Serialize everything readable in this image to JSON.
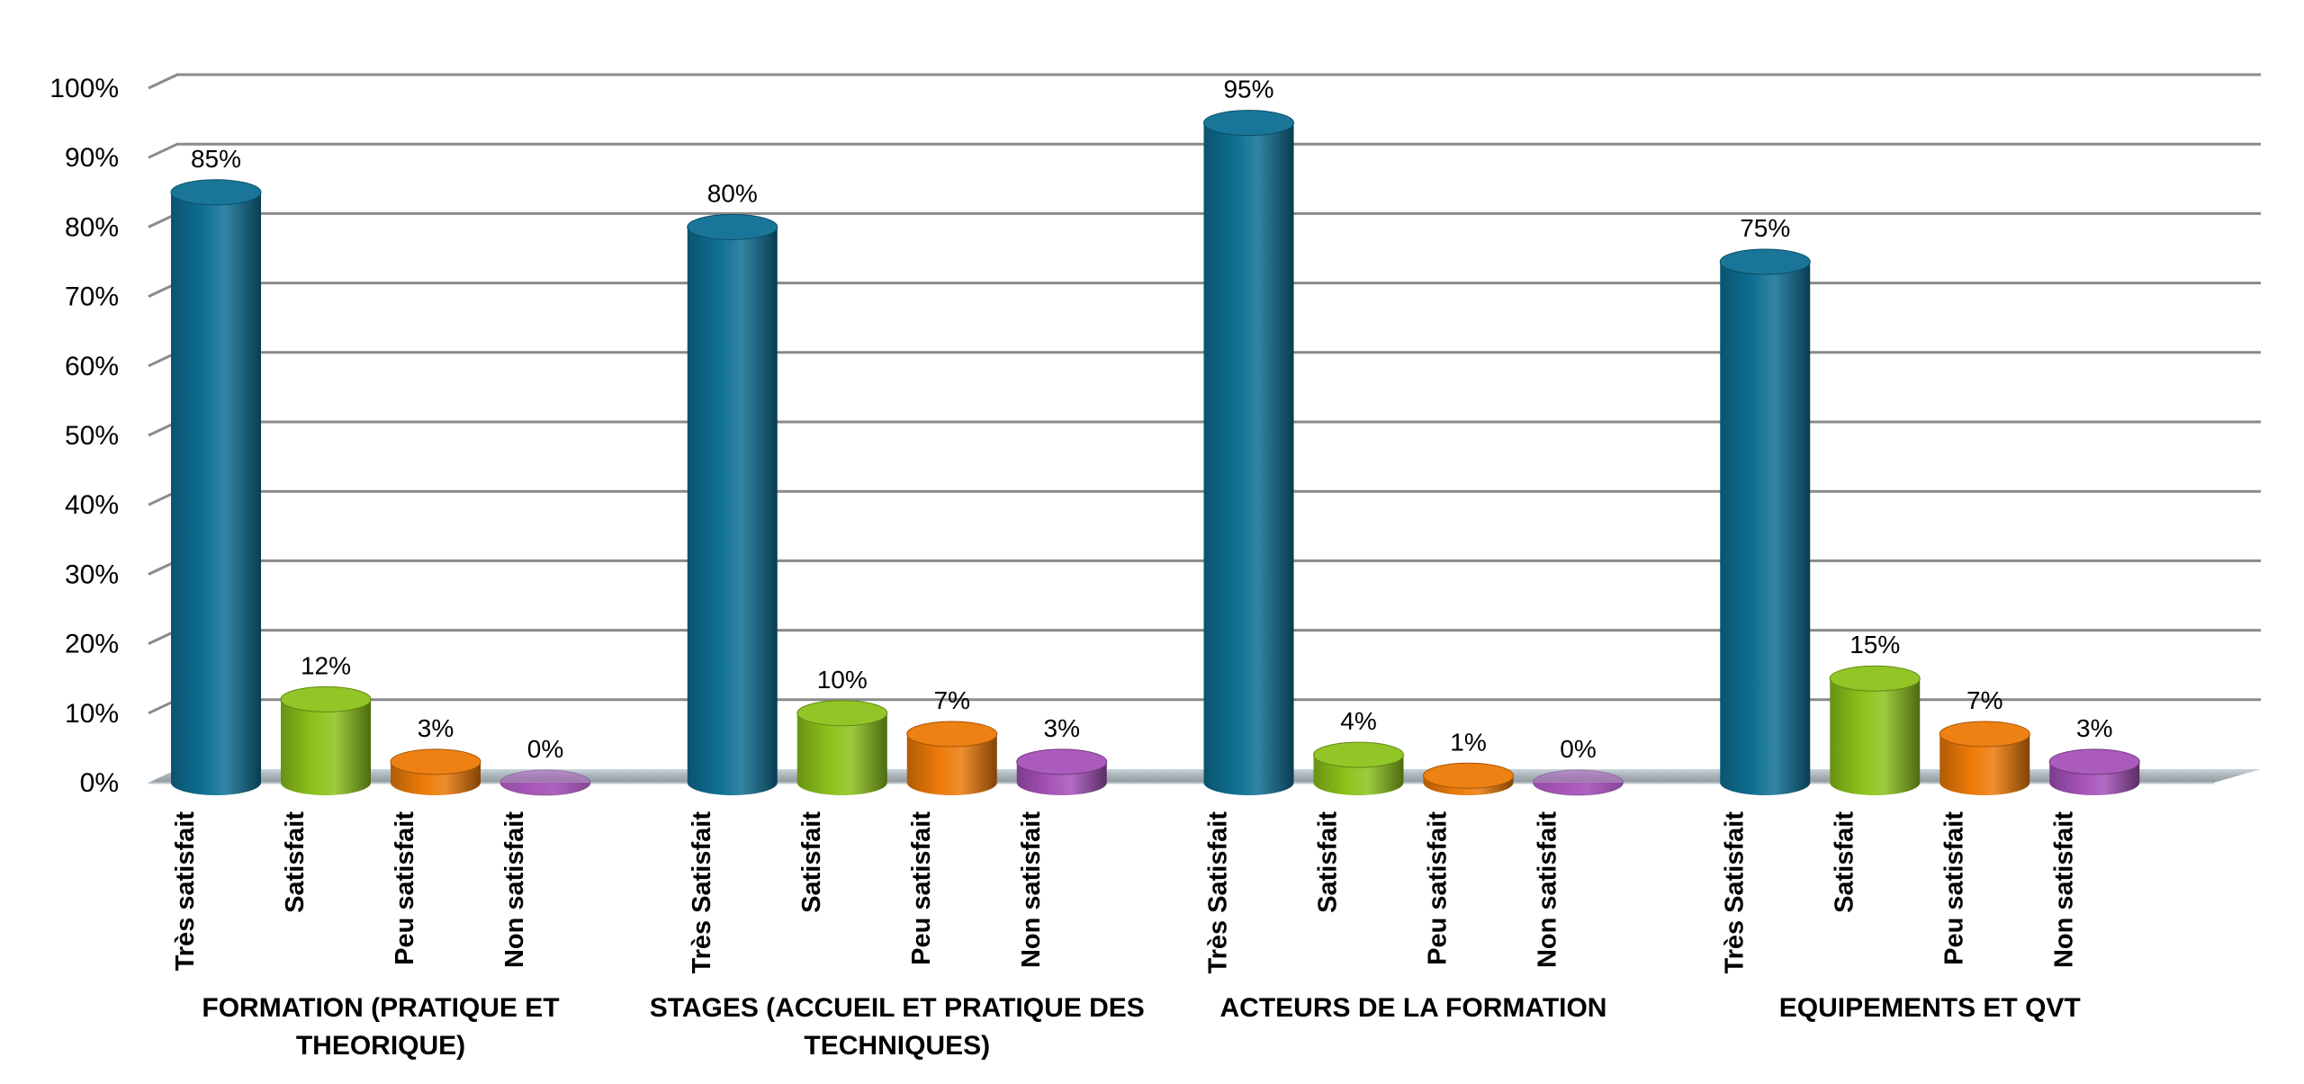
{
  "chart_data": {
    "type": "bar",
    "style": "3d-cylinder",
    "y_ticks": [
      "0%",
      "10%",
      "20%",
      "30%",
      "40%",
      "50%",
      "60%",
      "70%",
      "80%",
      "90%",
      "100%"
    ],
    "ylim": [
      0,
      100
    ],
    "grid": true,
    "legend": "none",
    "colors": {
      "Très satisfait": "#0e6f93",
      "Satisfait": "#8cc21b",
      "Peu satisfait": "#ec7a08",
      "Non satisfait": "#a552b8"
    },
    "groups": [
      {
        "name": "FORMATION (PRATIQUE ET THEORIQUE)",
        "name_lines": [
          "FORMATION (PRATIQUE ET",
          "THEORIQUE)"
        ],
        "bars": [
          {
            "label": "Très satisfait",
            "value": 85,
            "value_label": "85%"
          },
          {
            "label": "Satisfait",
            "value": 12,
            "value_label": "12%"
          },
          {
            "label": "Peu satisfait",
            "value": 3,
            "value_label": "3%"
          },
          {
            "label": "Non satisfait",
            "value": 0,
            "value_label": "0%"
          }
        ]
      },
      {
        "name": "STAGES (ACCUEIL ET PRATIQUE DES TECHNIQUES)",
        "name_lines": [
          "STAGES (ACCUEIL ET PRATIQUE DES",
          "TECHNIQUES)"
        ],
        "bars": [
          {
            "label": "Très Satisfait",
            "value": 80,
            "value_label": "80%"
          },
          {
            "label": "Satisfait",
            "value": 10,
            "value_label": "10%"
          },
          {
            "label": "Peu satisfait",
            "value": 7,
            "value_label": "7%"
          },
          {
            "label": "Non satisfait",
            "value": 3,
            "value_label": "3%"
          }
        ]
      },
      {
        "name": "ACTEURS DE LA FORMATION",
        "name_lines": [
          "ACTEURS DE LA FORMATION"
        ],
        "bars": [
          {
            "label": "Très Satisfait",
            "value": 95,
            "value_label": "95%"
          },
          {
            "label": "Satisfait",
            "value": 4,
            "value_label": "4%"
          },
          {
            "label": "Peu satisfait",
            "value": 1,
            "value_label": "1%"
          },
          {
            "label": "Non satisfait",
            "value": 0,
            "value_label": "0%"
          }
        ]
      },
      {
        "name": "EQUIPEMENTS ET QVT",
        "name_lines": [
          "EQUIPEMENTS ET QVT"
        ],
        "bars": [
          {
            "label": "Très Satisfait",
            "value": 75,
            "value_label": "75%"
          },
          {
            "label": "Satisfait",
            "value": 15,
            "value_label": "15%"
          },
          {
            "label": "Peu satisfait",
            "value": 7,
            "value_label": "7%"
          },
          {
            "label": "Non satisfait",
            "value": 3,
            "value_label": "3%"
          }
        ]
      }
    ]
  }
}
